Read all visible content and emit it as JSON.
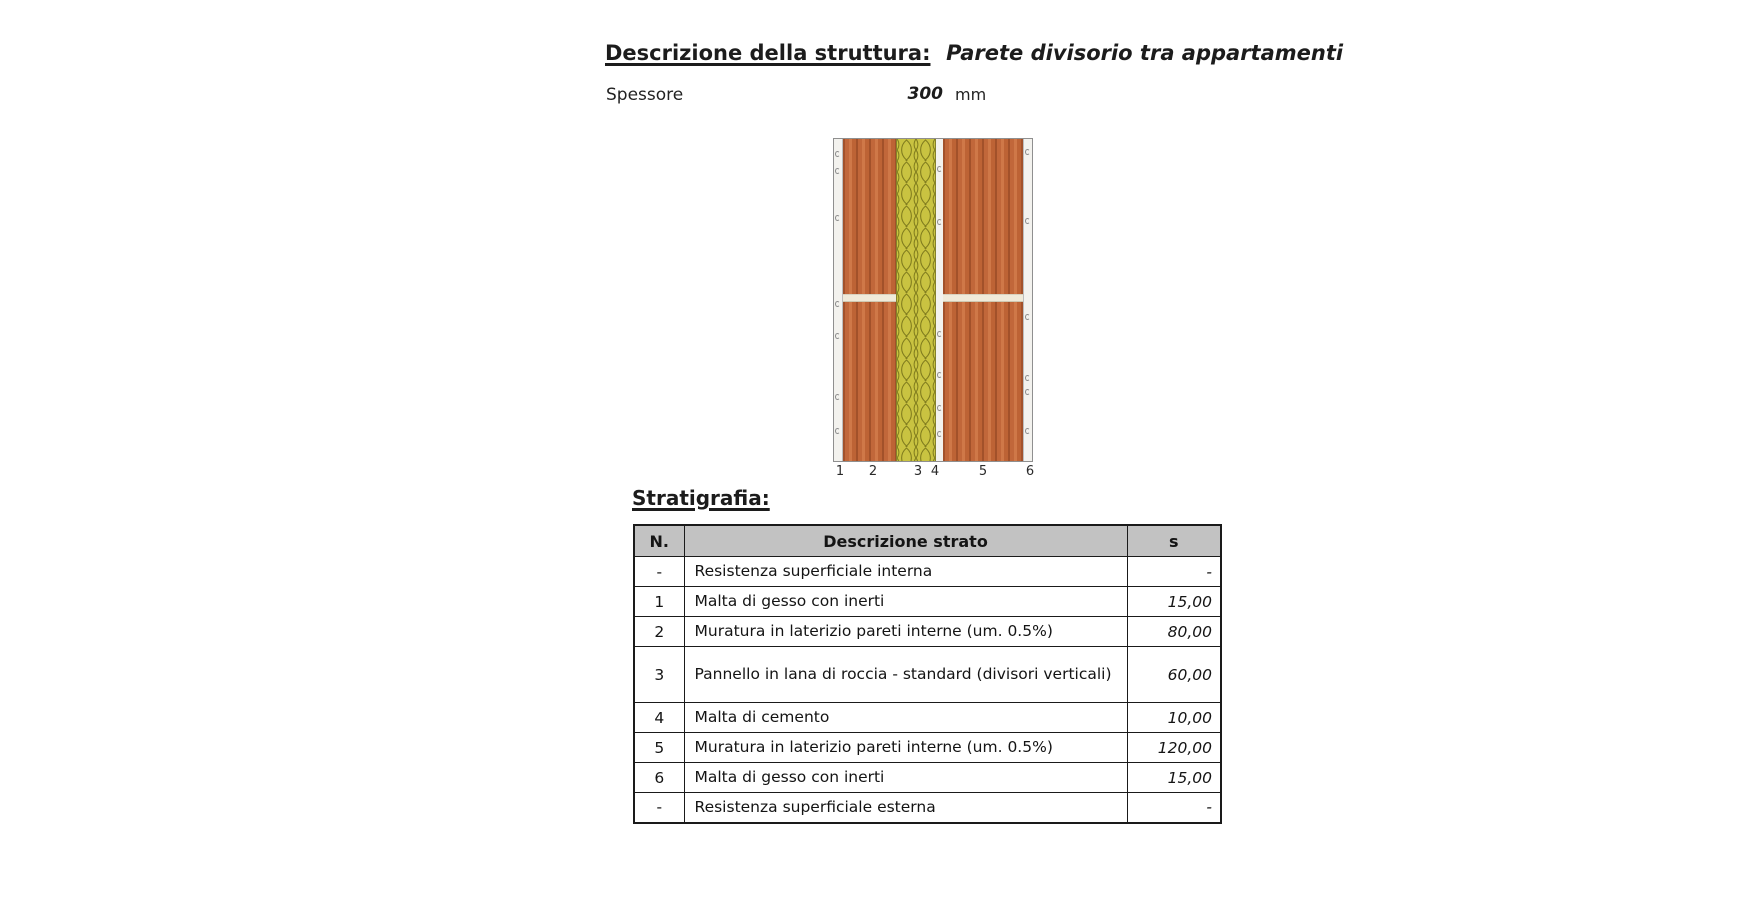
{
  "header": {
    "title_label": "Descrizione della struttura:",
    "title_value": "Parete divisorio tra appartamenti",
    "thickness_label": "Spessore",
    "thickness_value": "300",
    "thickness_unit": "mm"
  },
  "diagram": {
    "layer_numbers": [
      "1",
      "2",
      "3",
      "4",
      "5",
      "6"
    ],
    "colors": {
      "brick_base": "#c1673a",
      "brick_dark": "#a2512a",
      "brick_light": "#cf7848",
      "insulation_base": "#c9c341",
      "insulation_line": "#817d1e",
      "plaster": "#f3f2ee",
      "mortar_joint": "#f0ead9",
      "frame": "#8f8f8f"
    }
  },
  "stratigraphy": {
    "heading": "Stratigrafia:",
    "table": {
      "headers": [
        "N.",
        "Descrizione strato",
        "s"
      ],
      "rows": [
        {
          "n": "-",
          "description": "Resistenza superficiale interna",
          "s": "-"
        },
        {
          "n": "1",
          "description": "Malta di gesso con inerti",
          "s": "15,00"
        },
        {
          "n": "2",
          "description": "Muratura in laterizio pareti interne (um. 0.5%)",
          "s": "80,00"
        },
        {
          "n": "3",
          "description": "Pannello in lana di roccia - standard (divisori verticali)",
          "s": "60,00"
        },
        {
          "n": "4",
          "description": "Malta di cemento",
          "s": "10,00"
        },
        {
          "n": "5",
          "description": "Muratura in laterizio pareti interne (um. 0.5%)",
          "s": "120,00"
        },
        {
          "n": "6",
          "description": "Malta di gesso con inerti",
          "s": "15,00"
        },
        {
          "n": "-",
          "description": "Resistenza superficiale esterna",
          "s": "-"
        }
      ]
    }
  }
}
